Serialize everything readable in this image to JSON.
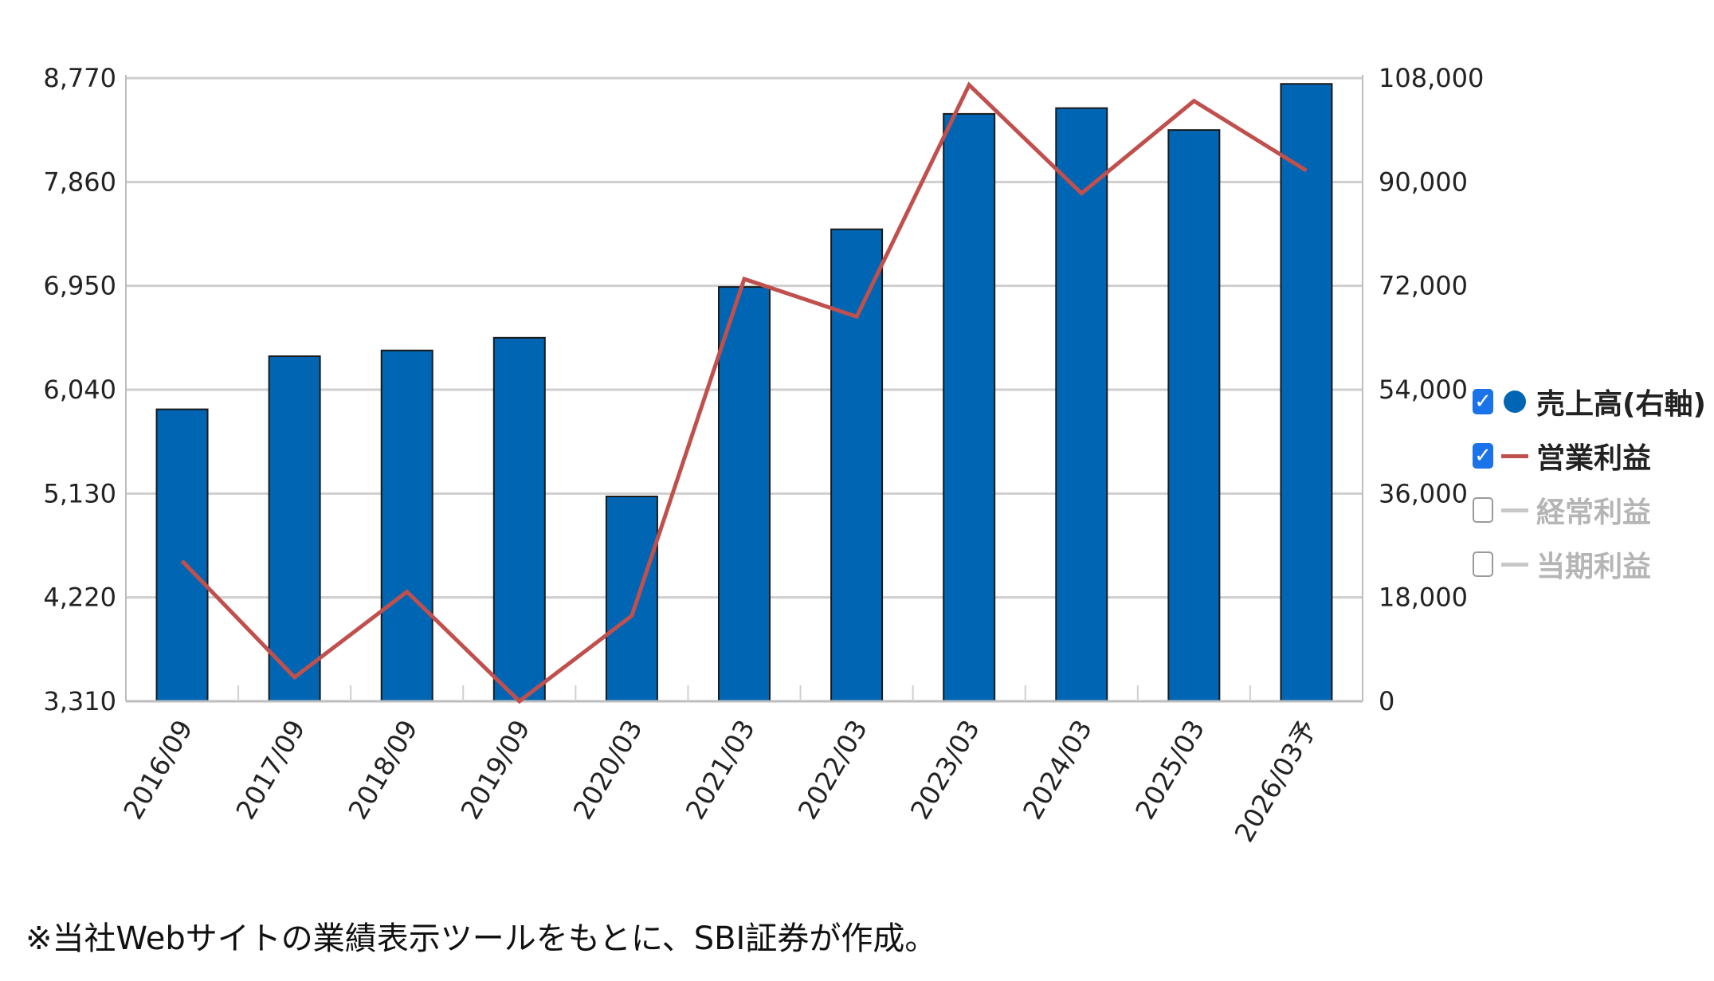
{
  "chart_data": {
    "type": "bar+line",
    "categories": [
      "2016/09",
      "2017/09",
      "2018/09",
      "2019/09",
      "2020/03",
      "2021/03",
      "2022/03",
      "2023/03",
      "2024/03",
      "2025/03",
      "2026/03予"
    ],
    "series": [
      {
        "name": "売上高(右軸)",
        "type": "bar",
        "axis": "right",
        "color": "#0066b3",
        "values": [
          50600,
          59800,
          60800,
          63000,
          35500,
          71800,
          81800,
          101800,
          102800,
          99000,
          107000
        ]
      },
      {
        "name": "営業利益",
        "type": "line",
        "axis": "left",
        "color": "#c0504d",
        "values": [
          4540,
          3520,
          4270,
          3310,
          4060,
          7010,
          6680,
          8710,
          7760,
          8570,
          7960
        ]
      }
    ],
    "y_left": {
      "ticks": [
        "8,770",
        "7,860",
        "6,950",
        "6,040",
        "5,130",
        "4,220",
        "3,310"
      ],
      "ylim": [
        3310,
        8770
      ]
    },
    "y_right": {
      "ticks": [
        "108,000",
        "90,000",
        "72,000",
        "54,000",
        "36,000",
        "18,000",
        "0"
      ],
      "ylim": [
        0,
        108000
      ]
    },
    "grid": true,
    "legend_position": "right"
  },
  "legend": [
    {
      "label": "売上高(右軸)",
      "checked": true,
      "symbol": "dot",
      "color": "#0066b3"
    },
    {
      "label": "営業利益",
      "checked": true,
      "symbol": "line",
      "color": "#c0504d"
    },
    {
      "label": "経常利益",
      "checked": false,
      "symbol": "line",
      "color": "#c8c8c8"
    },
    {
      "label": "当期利益",
      "checked": false,
      "symbol": "line",
      "color": "#c8c8c8"
    }
  ],
  "footnote": "※当社Webサイトの業績表示ツールをもとに、SBI証券が作成。"
}
